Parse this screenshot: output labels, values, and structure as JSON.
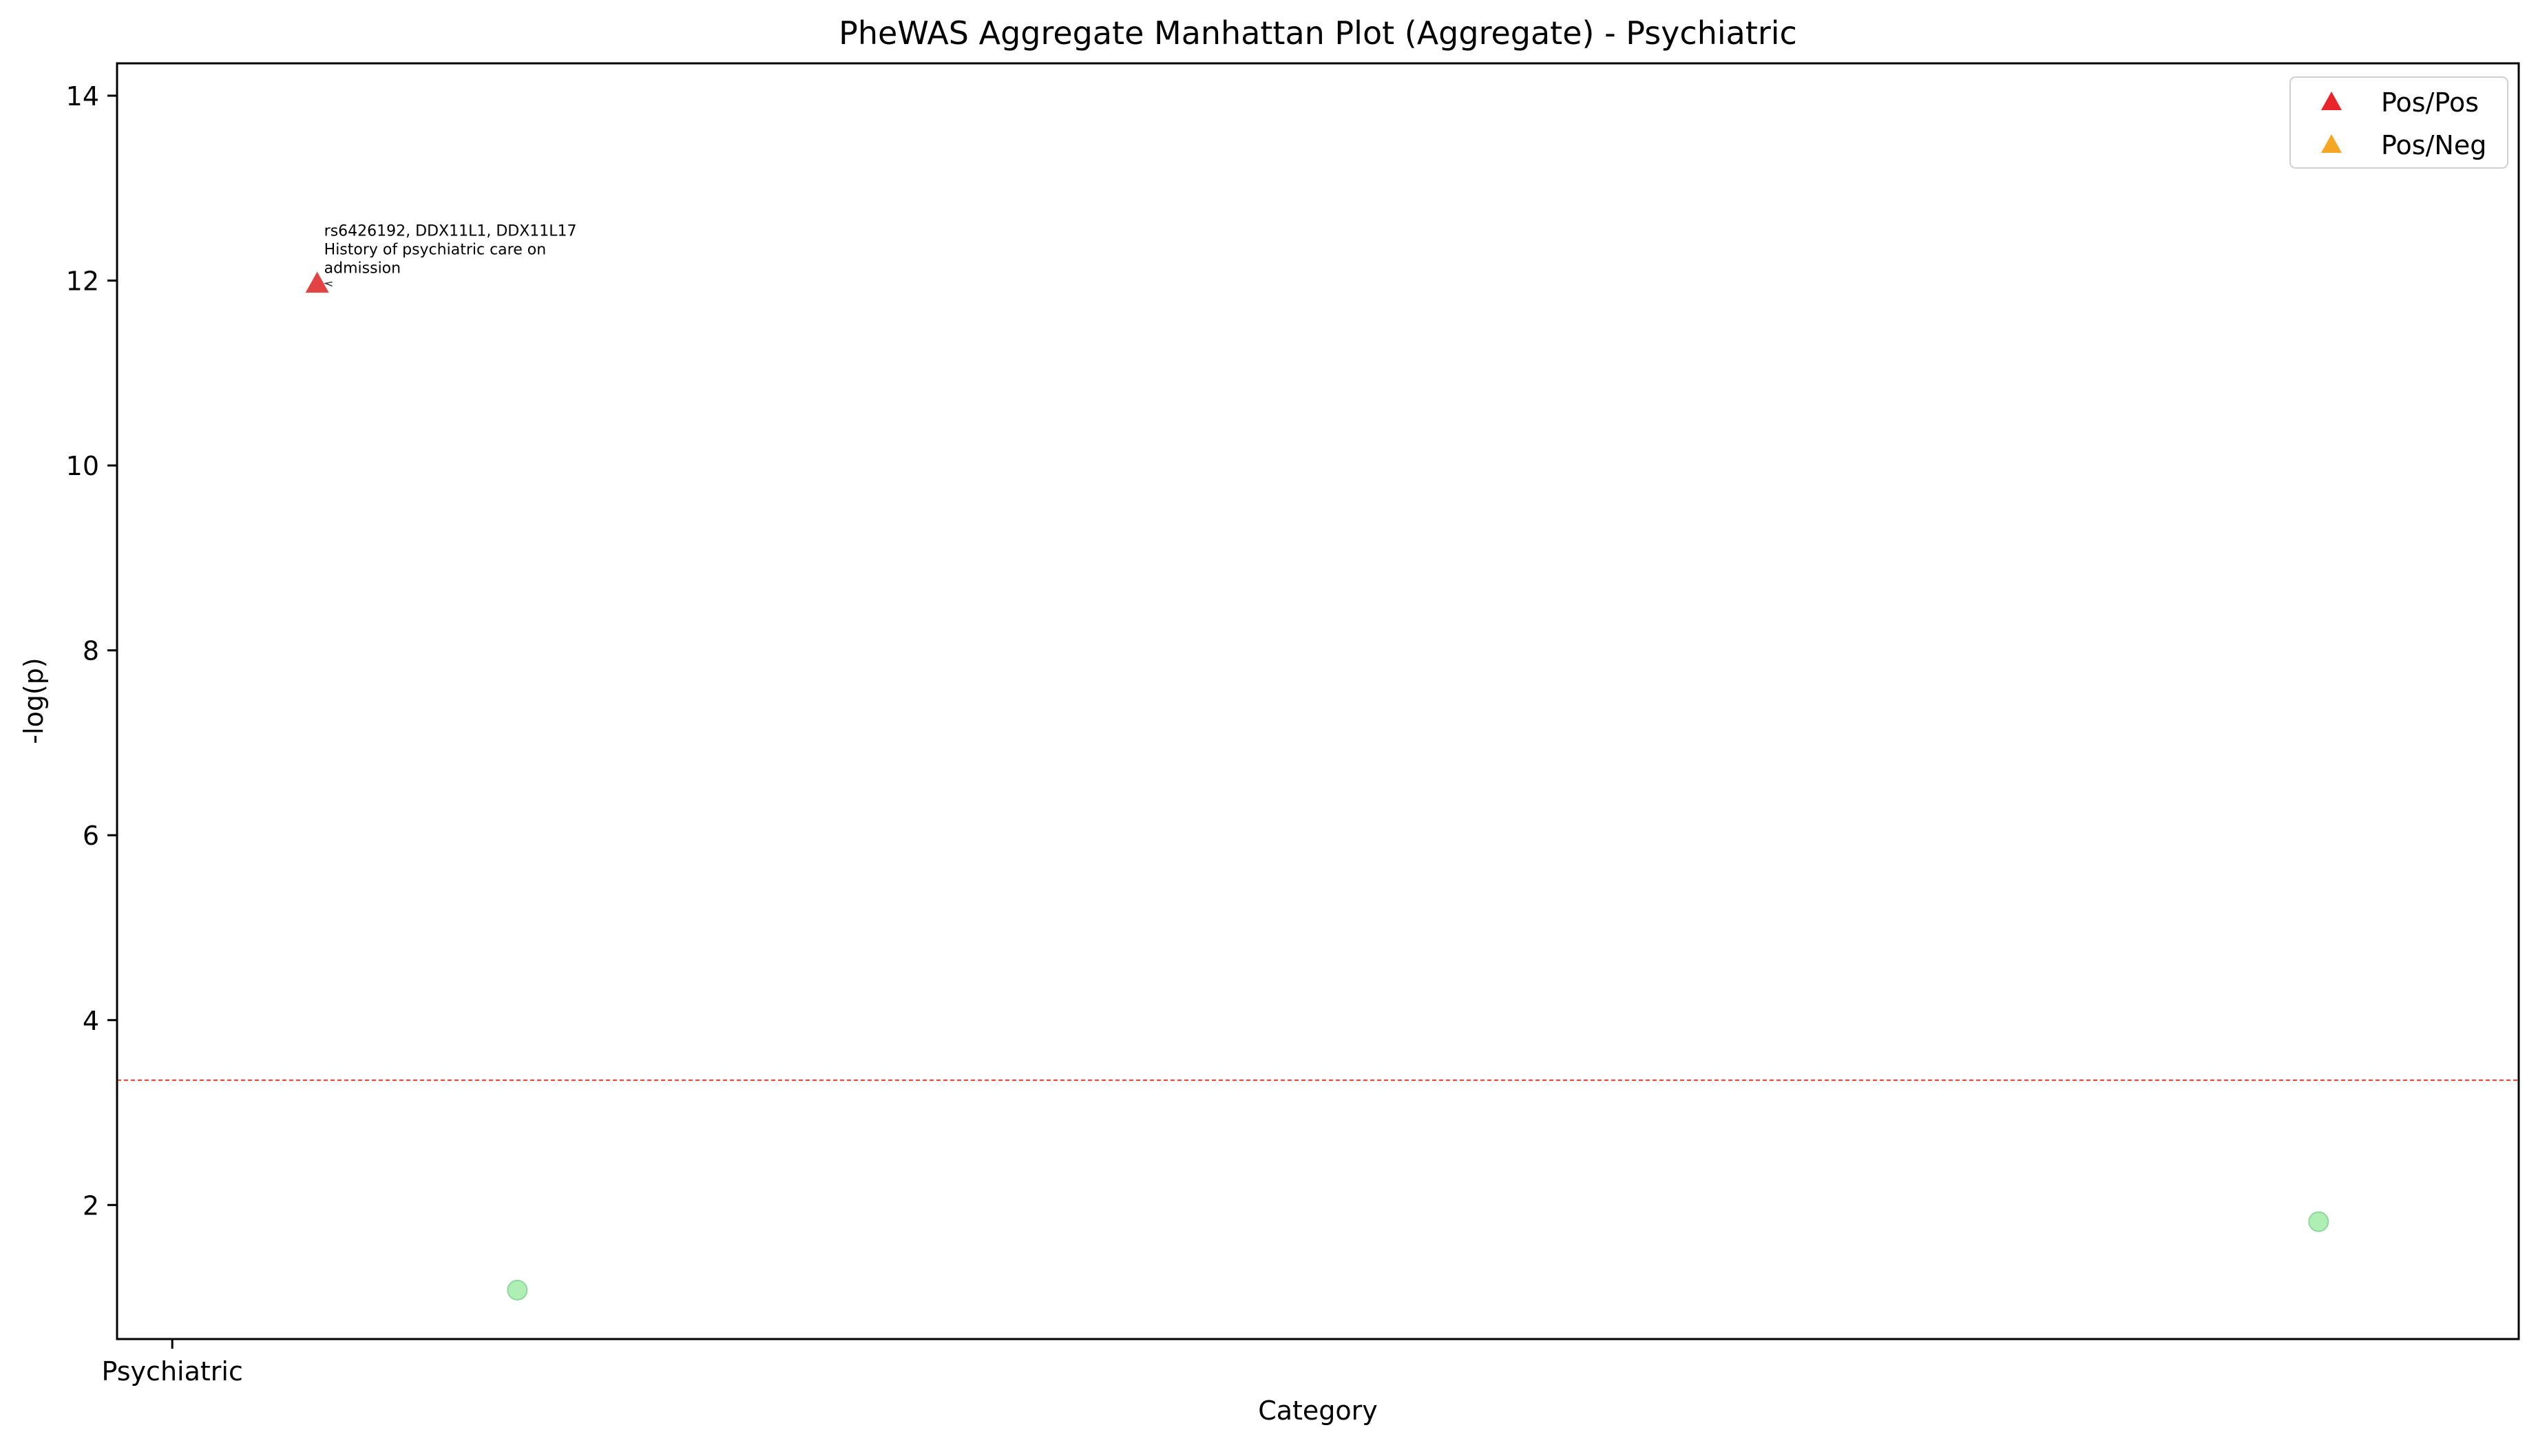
{
  "chart_data": {
    "type": "scatter",
    "title": "PheWAS Aggregate Manhattan Plot (Aggregate) - Psychiatric",
    "xlabel": "Category",
    "ylabel": "-log(p)",
    "ylim": [
      0.55,
      14.35
    ],
    "xlim": [
      -0.08,
      3.4
    ],
    "x_categories": [
      "Psychiatric"
    ],
    "y_ticks": [
      2,
      4,
      6,
      8,
      10,
      12,
      14
    ],
    "significance_threshold": 3.35,
    "grid": false,
    "legend_position": "upper right",
    "legend": [
      {
        "label": "Pos/Pos",
        "marker": "triangle",
        "color": "#e8252a"
      },
      {
        "label": "Pos/Neg",
        "marker": "triangle",
        "color": "#f5a623"
      }
    ],
    "points": [
      {
        "x": 0.21,
        "y": 11.97,
        "marker": "triangle",
        "color": "#e03a3a",
        "annotation": [
          "rs6426192, DDX11L1, DDX11L17",
          "History of psychiatric care on",
          "admission"
        ]
      },
      {
        "x": 0.5,
        "y": 1.08,
        "marker": "circle",
        "color": "#aef0b4"
      },
      {
        "x": 3.11,
        "y": 1.82,
        "marker": "circle",
        "color": "#aef0b4"
      }
    ]
  },
  "colors": {
    "threshold_line": "#e74c3c",
    "axis": "#000000"
  }
}
